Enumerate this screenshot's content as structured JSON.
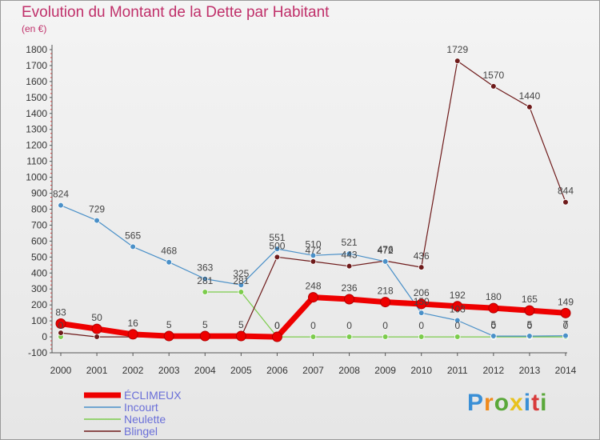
{
  "title": "Evolution du Montant de la Dette par Habitant",
  "subtitle": "(en €)",
  "logo": {
    "text": "Proxiti",
    "letter_colors": [
      "#3a8fd6",
      "#f08a1c",
      "#5aa83a",
      "#e8c21e",
      "#3a8fd6",
      "#d83a3a",
      "#5aa83a"
    ]
  },
  "chart_data": {
    "type": "line",
    "title": "Evolution du Montant de la Dette par Habitant",
    "subtitle": "(en €)",
    "xlabel": "",
    "ylabel": "",
    "x": [
      "2000",
      "2001",
      "2002",
      "2003",
      "2004",
      "2005",
      "2006",
      "2007",
      "2008",
      "2009",
      "2010",
      "2011",
      "2012",
      "2013",
      "2014"
    ],
    "ylim": [
      -100,
      1800
    ],
    "yticks": [
      -100,
      0,
      100,
      200,
      300,
      400,
      500,
      600,
      700,
      800,
      900,
      1000,
      1100,
      1200,
      1300,
      1400,
      1500,
      1600,
      1700,
      1800
    ],
    "grid": false,
    "legend_position": "bottom-left",
    "series": [
      {
        "name": "ÉCLIMEUX",
        "color": "#ee0000",
        "values": [
          83,
          50,
          16,
          5,
          5,
          5,
          0,
          248,
          236,
          218,
          206,
          192,
          180,
          165,
          149
        ],
        "labels": [
          "83",
          "50",
          "16",
          "5",
          "5",
          "5",
          "0",
          "248",
          "236",
          "218",
          "206",
          "192",
          "180",
          "165",
          "149"
        ]
      },
      {
        "name": "Incourt",
        "color": "#4a90c8",
        "values": [
          824,
          729,
          565,
          468,
          363,
          325,
          551,
          510,
          521,
          472,
          150,
          103,
          5,
          5,
          7
        ],
        "labels": [
          "824",
          "729",
          "565",
          "468",
          "363",
          "325",
          "551",
          "510",
          "521",
          "472",
          "150",
          "103",
          "5",
          "5",
          "7"
        ]
      },
      {
        "name": "Neulette",
        "color": "#7ccc4c",
        "values": [
          0,
          null,
          null,
          null,
          281,
          281,
          0,
          0,
          0,
          0,
          0,
          0,
          0,
          0,
          0
        ],
        "labels": [
          "0",
          "",
          "",
          "",
          "281",
          "281",
          "0",
          "0",
          "0",
          "0",
          "0",
          "0",
          "0",
          "0",
          "0"
        ]
      },
      {
        "name": "Blingel",
        "color": "#6e1a1a",
        "values": [
          25,
          0,
          0,
          0,
          0,
          0,
          500,
          472,
          443,
          476,
          436,
          1729,
          1570,
          1440,
          844
        ],
        "labels": [
          "",
          "",
          "",
          "",
          "",
          "",
          "500",
          "472",
          "443",
          "476",
          "436",
          "1729",
          "1570",
          "1440",
          "844"
        ]
      }
    ]
  }
}
